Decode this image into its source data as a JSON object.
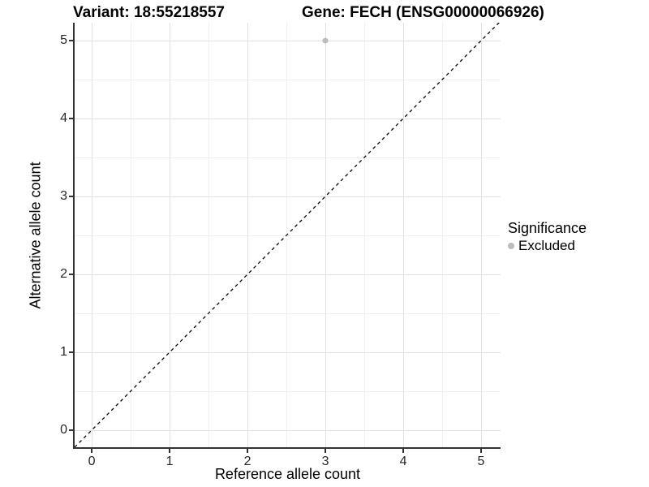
{
  "chart_data": {
    "type": "scatter",
    "title_left": "Variant: 18:55218557",
    "title_right": "Gene: FECH (ENSG00000066926)",
    "xlabel": "Reference allele count",
    "ylabel": "Alternative allele count",
    "xlim": [
      -0.22,
      5.25
    ],
    "ylim": [
      -0.22,
      5.23
    ],
    "x_ticks": [
      0,
      1,
      2,
      3,
      4,
      5
    ],
    "y_ticks": [
      0,
      1,
      2,
      3,
      4,
      5
    ],
    "grid": {
      "major": [
        0,
        1,
        2,
        3,
        4,
        5
      ],
      "minor": [
        0.5,
        1.5,
        2.5,
        3.5,
        4.5
      ],
      "major_color": "#e2e2e2",
      "minor_color": "#f0f0f0"
    },
    "points": [
      {
        "x": 3,
        "y": 5,
        "significance": "Excluded",
        "color": "#bcbcbc",
        "radius": 3.5
      }
    ],
    "identity_line": {
      "style": "dashed",
      "color": "#000000",
      "from": [
        -0.22,
        -0.22
      ],
      "to": [
        5.25,
        5.25
      ]
    },
    "legend": {
      "title": "Significance",
      "position": "right",
      "entries": [
        {
          "label": "Excluded",
          "color": "#bcbcbc"
        }
      ]
    },
    "colors": {
      "axis_line": "#333333",
      "tick_label": "#262626",
      "background": "#ffffff"
    }
  }
}
